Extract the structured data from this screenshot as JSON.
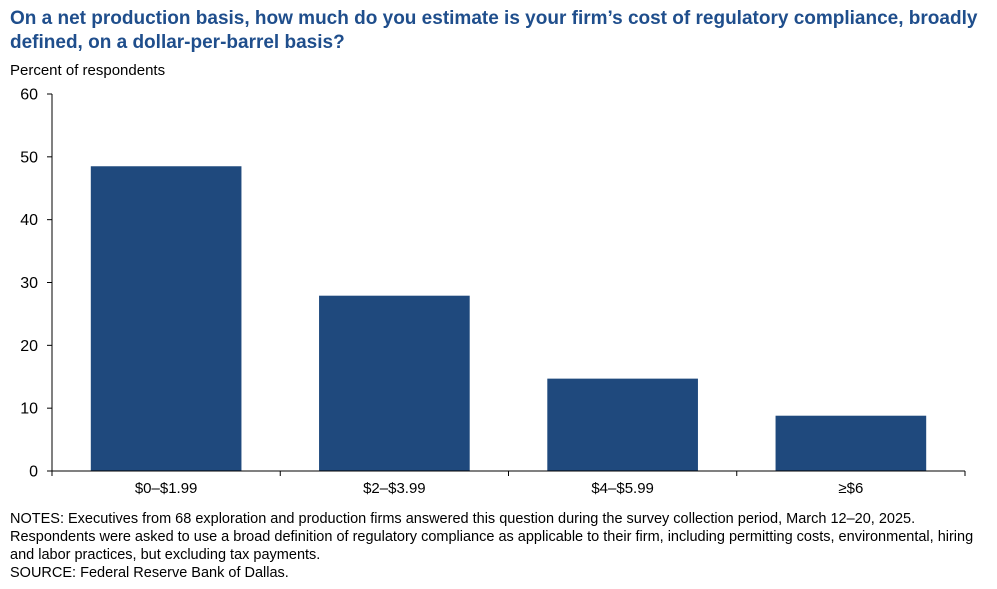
{
  "title": "On a net production basis, how much do you estimate is your firm’s cost of regulatory compliance, broadly defined, on a dollar-per-barrel basis?",
  "notes": "NOTES: Executives from 68 exploration and production firms answered this question during the survey collection period, March 12–20, 2025. Respondents were asked to use a broad definition of regulatory compliance as applicable to their firm, including permitting costs, environmental, hiring and labor practices, but excluding tax payments.",
  "source": "SOURCE: Federal Reserve Bank of Dallas.",
  "colors": {
    "bar": "#1f497d",
    "title": "#1f4e8c",
    "axis": "#000000"
  },
  "chart_data": {
    "type": "bar",
    "title": "On a net production basis, how much do you estimate is your firm’s cost of regulatory compliance, broadly defined, on a dollar-per-barrel basis?",
    "ylabel": "Percent of respondents",
    "xlabel": "",
    "categories": [
      "$0–$1.99",
      "$2–$3.99",
      "$4–$5.99",
      "≥$6"
    ],
    "values": [
      48.5,
      27.9,
      14.7,
      8.8
    ],
    "ylim": [
      0,
      60
    ],
    "yticks": [
      0,
      10,
      20,
      30,
      40,
      50,
      60
    ],
    "grid": false,
    "legend": "none"
  }
}
